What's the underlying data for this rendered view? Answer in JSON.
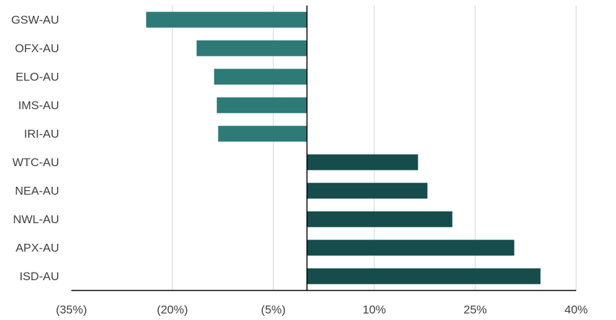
{
  "chart_data": {
    "type": "bar",
    "orientation": "horizontal",
    "categories": [
      "GSW-AU",
      "OFX-AU",
      "ELO-AU",
      "IMS-AU",
      "IRI-AU",
      "WTC-AU",
      "NEA-AU",
      "NWL-AU",
      "APX-AU",
      "ISD-AU"
    ],
    "values": [
      -23.9,
      -16.4,
      -13.8,
      -13.4,
      -13.2,
      16.5,
      17.9,
      21.6,
      30.8,
      34.7
    ],
    "xlim": [
      -35,
      40
    ],
    "xticks": [
      -35,
      -20,
      -5,
      10,
      25,
      40
    ],
    "xtick_labels": [
      "(35%)",
      "(20%)",
      "(5%)",
      "10%",
      "25%",
      "40%"
    ],
    "grid": "vertical",
    "colors": {
      "negative": "#2e7a77",
      "positive": "#164d4c",
      "grid": "#d0d0d0",
      "axis": "#000000",
      "label": "#404040"
    }
  }
}
